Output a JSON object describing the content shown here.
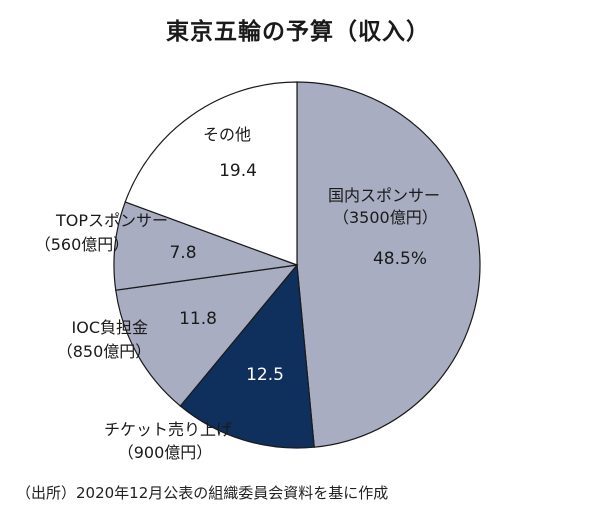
{
  "chart_data": {
    "type": "pie",
    "title": "東京五輪の予算（収入）",
    "slices": [
      {
        "name": "国内スポンサー",
        "amount": "（3500億円）",
        "value": 48.5,
        "value_label": "48.5%",
        "color": "#a9adc2"
      },
      {
        "name": "チケット売り上げ",
        "amount": "（900億円）",
        "value": 12.5,
        "value_label": "12.5",
        "color": "#0f2f5c"
      },
      {
        "name": "IOC負担金",
        "amount": "（850億円）",
        "value": 11.8,
        "value_label": "11.8",
        "color": "#a9adc2"
      },
      {
        "name": "TOPスポンサー",
        "amount": "（560億円）",
        "value": 7.8,
        "value_label": "7.8",
        "color": "#a9adc2"
      },
      {
        "name": "その他",
        "amount": "",
        "value": 19.4,
        "value_label": "19.4",
        "color": "#ffffff"
      }
    ],
    "start_angle": "12 o'clock",
    "direction": "clockwise",
    "source": "（出所）2020年12月公表の組織委員会資料を基に作成"
  }
}
